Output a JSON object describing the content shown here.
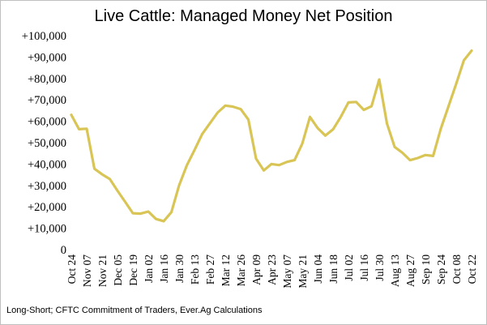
{
  "chart_data": {
    "type": "line",
    "title": "Live Cattle: Managed Money Net Position",
    "xlabel": "",
    "ylabel": "",
    "ylim": [
      0,
      100000
    ],
    "yticks": [
      "0",
      "+10,000",
      "+20,000",
      "+30,000",
      "+40,000",
      "+50,000",
      "+60,000",
      "+70,000",
      "+80,000",
      "+90,000",
      "+100,000"
    ],
    "x_tick_labels": [
      "Oct 24",
      "Nov 07",
      "Nov 21",
      "Dec 05",
      "Dec 19",
      "Jan 02",
      "Jan 16",
      "Jan 30",
      "Feb 13",
      "Feb 27",
      "Mar 12",
      "Mar 26",
      "Apr 09",
      "Apr 23",
      "May 07",
      "May 21",
      "Jun 04",
      "Jun 18",
      "Jul 02",
      "Jul 16",
      "Jul 30",
      "Aug 13",
      "Aug 27",
      "Sep 10",
      "Sep 24",
      "Oct 08",
      "Oct 22"
    ],
    "grid": false,
    "line_color": "#d9c556",
    "series": [
      {
        "name": "",
        "values": [
          63000,
          56300,
          56500,
          37800,
          35200,
          33000,
          27500,
          22300,
          17000,
          16800,
          17800,
          14300,
          13300,
          17500,
          30000,
          39300,
          46500,
          54000,
          59000,
          64000,
          67300,
          66800,
          65700,
          60800,
          42500,
          37000,
          40000,
          39500,
          41000,
          41800,
          49500,
          62000,
          56800,
          53300,
          56200,
          62000,
          68800,
          69000,
          65300,
          67000,
          79500,
          59000,
          48000,
          45300,
          41800,
          42800,
          44200,
          43800,
          56500,
          67000,
          77500,
          88500,
          93000
        ]
      }
    ]
  },
  "footnote": "Long-Short; CFTC Commitment of Traders, Ever.Ag Calculations"
}
